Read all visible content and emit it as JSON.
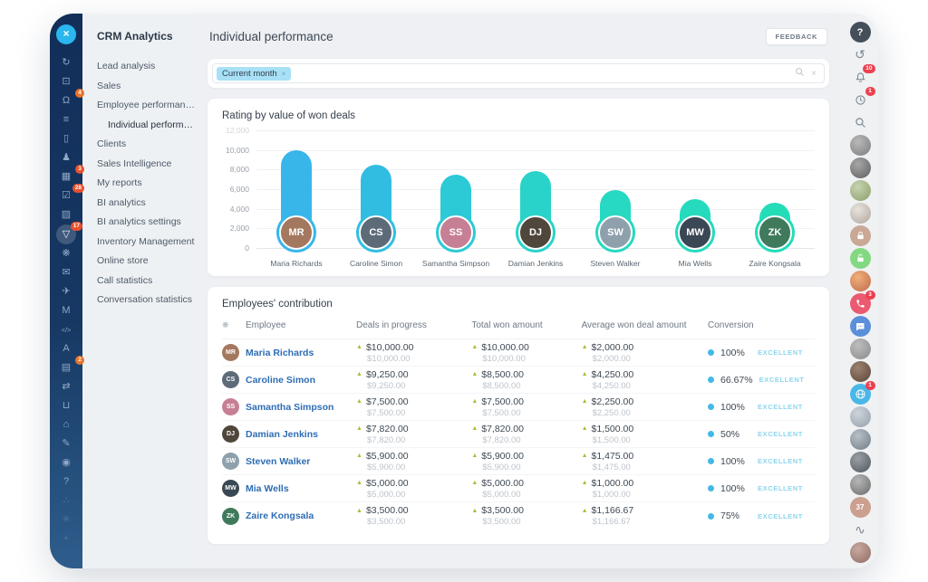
{
  "app": {
    "close_label": "×"
  },
  "sidebar": {
    "title": "CRM Analytics",
    "items": [
      {
        "label": "Lead analysis"
      },
      {
        "label": "Sales"
      },
      {
        "label": "Employee performance"
      },
      {
        "label": "Individual performance",
        "indent": true,
        "active": true
      },
      {
        "label": "Clients"
      },
      {
        "label": "Sales Intelligence"
      },
      {
        "label": "My reports"
      },
      {
        "label": "BI analytics"
      },
      {
        "label": "BI analytics settings"
      },
      {
        "label": "Inventory Management"
      },
      {
        "label": "Online store"
      },
      {
        "label": "Call statistics"
      },
      {
        "label": "Conversation statistics"
      }
    ]
  },
  "left_rail": {
    "icons": [
      {
        "name": "sync",
        "glyph": "↻"
      },
      {
        "name": "monitor",
        "glyph": "⊡"
      },
      {
        "name": "support",
        "glyph": "Ω",
        "badge": "4",
        "badge_color": "#e8742c"
      },
      {
        "name": "list",
        "glyph": "≡"
      },
      {
        "name": "document",
        "glyph": "▯"
      },
      {
        "name": "team",
        "glyph": "♟"
      },
      {
        "name": "calendar",
        "glyph": "▦",
        "badge": "3",
        "badge_color": "#e8512d"
      },
      {
        "name": "tasks",
        "glyph": "☑",
        "badge": "28",
        "badge_color": "#e8512d"
      },
      {
        "name": "gallery",
        "glyph": "▨"
      },
      {
        "name": "funnel",
        "glyph": "▽",
        "badge": "17",
        "badge_color": "#e8512d",
        "active": true
      },
      {
        "name": "automation",
        "glyph": "❋"
      },
      {
        "name": "mail",
        "glyph": "✉"
      },
      {
        "name": "bird",
        "glyph": "✈"
      },
      {
        "name": "metrics",
        "glyph": "M"
      },
      {
        "name": "code",
        "glyph": "</>"
      },
      {
        "name": "marketing",
        "glyph": "A"
      },
      {
        "name": "printer",
        "glyph": "▤",
        "badge": "2",
        "badge_color": "#e8742c"
      },
      {
        "name": "transfer",
        "glyph": "⇄"
      },
      {
        "name": "cart",
        "glyph": "⊔"
      },
      {
        "name": "home",
        "glyph": "⌂"
      },
      {
        "name": "edit",
        "glyph": "✎"
      },
      {
        "name": "record",
        "glyph": "◉"
      },
      {
        "name": "help",
        "glyph": "?"
      },
      {
        "name": "network",
        "glyph": "∴",
        "dim": true
      },
      {
        "name": "settings",
        "glyph": "✳",
        "dim": true
      },
      {
        "name": "add",
        "glyph": "+",
        "dim": true
      }
    ]
  },
  "header": {
    "title": "Individual performance",
    "feedback_label": "FEEDBACK"
  },
  "filter": {
    "chips": [
      {
        "label": "Current month",
        "remove_label": "×"
      }
    ],
    "clear_label": "×"
  },
  "chart_data": {
    "type": "bar",
    "title": "Rating by value of won deals",
    "categories": [
      "Maria Richards",
      "Caroline Simon",
      "Samantha Simpson",
      "Damian Jenkins",
      "Steven Walker",
      "Mia Wells",
      "Zaire Kongsala"
    ],
    "values": [
      10000,
      8500,
      7500,
      7820,
      5900,
      5000,
      3500
    ],
    "bar_colors": [
      "#38b6ea",
      "#31bde2",
      "#2cc9d6",
      "#29d3c9",
      "#27d8c2",
      "#25dabd",
      "#23dcb8"
    ],
    "avatar_colors": [
      "#a4785f",
      "#5d6a78",
      "#c77f95",
      "#4f463c",
      "#8fa0ad",
      "#3a4754",
      "#3f7a5c"
    ],
    "xlabel": "",
    "ylabel": "",
    "ylim": [
      0,
      12000
    ],
    "yticks": [
      "12,000",
      "10,000",
      "8,000",
      "6,000",
      "4,000",
      "2,000",
      "0"
    ],
    "grid": true,
    "legend": false
  },
  "table": {
    "title": "Employees' contribution",
    "columns": [
      "Employee",
      "Deals in progress",
      "Total won amount",
      "Average won deal amount",
      "Conversion"
    ],
    "rows": [
      {
        "name": "Maria Richards",
        "deals": "$10,000.00",
        "deals_sub": "$10,000.00",
        "won": "$10,000.00",
        "won_sub": "$10,000.00",
        "avg": "$2,000.00",
        "avg_sub": "$2,000.00",
        "conversion": "100%",
        "rating": "EXCELLENT"
      },
      {
        "name": "Caroline Simon",
        "deals": "$9,250.00",
        "deals_sub": "$9,250.00",
        "won": "$8,500.00",
        "won_sub": "$8,500.00",
        "avg": "$4,250.00",
        "avg_sub": "$4,250.00",
        "conversion": "66.67%",
        "rating": "EXCELLENT"
      },
      {
        "name": "Samantha Simpson",
        "deals": "$7,500.00",
        "deals_sub": "$7,500.00",
        "won": "$7,500.00",
        "won_sub": "$7,500.00",
        "avg": "$2,250.00",
        "avg_sub": "$2,250.00",
        "conversion": "100%",
        "rating": "EXCELLENT"
      },
      {
        "name": "Damian Jenkins",
        "deals": "$7,820.00",
        "deals_sub": "$7,820.00",
        "won": "$7,820.00",
        "won_sub": "$7,820.00",
        "avg": "$1,500.00",
        "avg_sub": "$1,500.00",
        "conversion": "50%",
        "rating": "EXCELLENT"
      },
      {
        "name": "Steven Walker",
        "deals": "$5,900.00",
        "deals_sub": "$5,900.00",
        "won": "$5,900.00",
        "won_sub": "$5,900.00",
        "avg": "$1,475.00",
        "avg_sub": "$1,475.00",
        "conversion": "100%",
        "rating": "EXCELLENT"
      },
      {
        "name": "Mia Wells",
        "deals": "$5,000.00",
        "deals_sub": "$5,000.00",
        "won": "$5,000.00",
        "won_sub": "$5,000.00",
        "avg": "$1,000.00",
        "avg_sub": "$1,000.00",
        "conversion": "100%",
        "rating": "EXCELLENT"
      },
      {
        "name": "Zaire Kongsala",
        "deals": "$3,500.00",
        "deals_sub": "$3,500.00",
        "won": "$3,500.00",
        "won_sub": "$3,500.00",
        "avg": "$1,166.67",
        "avg_sub": "$1,166.67",
        "conversion": "75%",
        "rating": "EXCELLENT"
      }
    ],
    "accent": {
      "trend_arrow": "▲",
      "trend_color": "#a3c13d",
      "dot_color": "#44b9e8",
      "rating_color": "#8bd6ee"
    }
  },
  "right_rail": {
    "items": [
      {
        "kind": "dark",
        "name": "help",
        "text": "?"
      },
      {
        "kind": "plain",
        "name": "history",
        "text": "↺"
      },
      {
        "kind": "svg",
        "name": "notifications",
        "icon": "bell",
        "badge": "10"
      },
      {
        "kind": "svg",
        "name": "time-tracking",
        "icon": "clock",
        "badge": "1"
      },
      {
        "kind": "svg",
        "name": "search",
        "icon": "search"
      },
      {
        "kind": "avatar",
        "name": "user-avatar",
        "c1": "#b9b9b9",
        "c2": "#7d7d7d"
      },
      {
        "kind": "avatar",
        "name": "user-avatar",
        "c1": "#a7a7a7",
        "c2": "#5f5f5f"
      },
      {
        "kind": "avatar",
        "name": "user-avatar",
        "c1": "#c7d3b0",
        "c2": "#8aa06a"
      },
      {
        "kind": "avatar",
        "name": "user-avatar",
        "c1": "#e8e3de",
        "c2": "#b0a69c"
      },
      {
        "kind": "svgc",
        "name": "locked-user",
        "icon": "lock",
        "bg": "#c9a896"
      },
      {
        "kind": "svgc",
        "name": "unlocked-user",
        "icon": "lock-open",
        "bg": "#82d982"
      },
      {
        "kind": "avatar",
        "name": "user-avatar",
        "c1": "#f0b079",
        "c2": "#c06a4e"
      },
      {
        "kind": "svgc",
        "name": "calls",
        "icon": "phone",
        "bg": "#ea5a70",
        "badge": "3"
      },
      {
        "kind": "svgc",
        "name": "messenger",
        "icon": "chat",
        "bg": "#5b8fd9"
      },
      {
        "kind": "avatar",
        "name": "user-avatar",
        "c1": "#bdbdbd",
        "c2": "#8a8a8a"
      },
      {
        "kind": "avatar",
        "name": "user-avatar",
        "c1": "#9c8170",
        "c2": "#5c4638"
      },
      {
        "kind": "svgc",
        "name": "web",
        "icon": "globe",
        "bg": "#49b7e8",
        "badge": "1"
      },
      {
        "kind": "avatar",
        "name": "user-avatar",
        "c1": "#cfd4da",
        "c2": "#93a0ac"
      },
      {
        "kind": "avatar",
        "name": "user-avatar",
        "c1": "#b9c0c6",
        "c2": "#6f7c88"
      },
      {
        "kind": "avatar",
        "name": "user-avatar",
        "c1": "#9aa0a6",
        "c2": "#4f565c"
      },
      {
        "kind": "avatar",
        "name": "user-avatar",
        "c1": "#b7b7b7",
        "c2": "#6b6b6b"
      },
      {
        "kind": "textc",
        "name": "counter",
        "text": "37",
        "bg": "#cba08f"
      },
      {
        "kind": "plain",
        "name": "sketch",
        "text": "∿"
      },
      {
        "kind": "avatar",
        "name": "user-avatar",
        "c1": "#caa9a0",
        "c2": "#8d6b63"
      }
    ]
  }
}
